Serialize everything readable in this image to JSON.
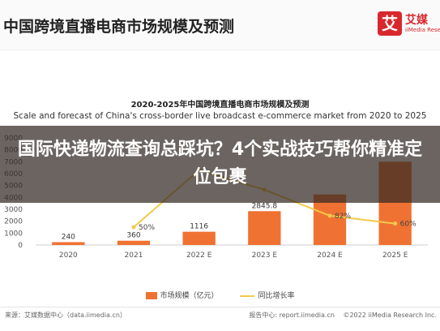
{
  "header": {
    "title": "中国跨境直播电商市场规模及预测",
    "logo_mark": "艾",
    "logo_name": "艾媒",
    "logo_sub": "iiMedia Research"
  },
  "overlay": {
    "title": "国际快递物流查询总踩坑？4个实战技巧帮你精准定位包裹"
  },
  "chart_data": {
    "type": "bar",
    "title": "2020-2025年中国跨境直播电商市场规模及预测",
    "subtitle": "Scale and forecast of China's cross-border live broadcast e-commerce market from 2020 to 2025",
    "categories": [
      "2020",
      "2021",
      "2022 E",
      "2023 E",
      "2024 E",
      "2025 E"
    ],
    "series": [
      {
        "name": "市场规模（亿元）",
        "type": "bar",
        "color": "#f07232",
        "values": [
          240,
          360,
          1116,
          2845.8,
          4250,
          7000
        ],
        "labels": [
          "240",
          "360",
          "1116",
          "2845.8",
          "",
          ""
        ]
      },
      {
        "name": "同比增长率",
        "type": "line",
        "color": "#f2c94c",
        "values": [
          null,
          50,
          210,
          155,
          82,
          60
        ],
        "labels": [
          "",
          "50%",
          "",
          "",
          "82%",
          "60%"
        ]
      }
    ],
    "y_ticks": [
      0,
      1000,
      2000,
      3000,
      4000,
      5000,
      6000,
      7000,
      8000,
      9000
    ],
    "ylim": [
      0,
      9000
    ],
    "y2lim": [
      0,
      300
    ],
    "grid": false,
    "legend": "bottom"
  },
  "footer": {
    "source": "来源：艾媒数据中心（data.iimedia.cn）",
    "links": [
      "报告中心: report.iimedia.cn",
      "©2022 iiMedia Research Inc."
    ]
  }
}
